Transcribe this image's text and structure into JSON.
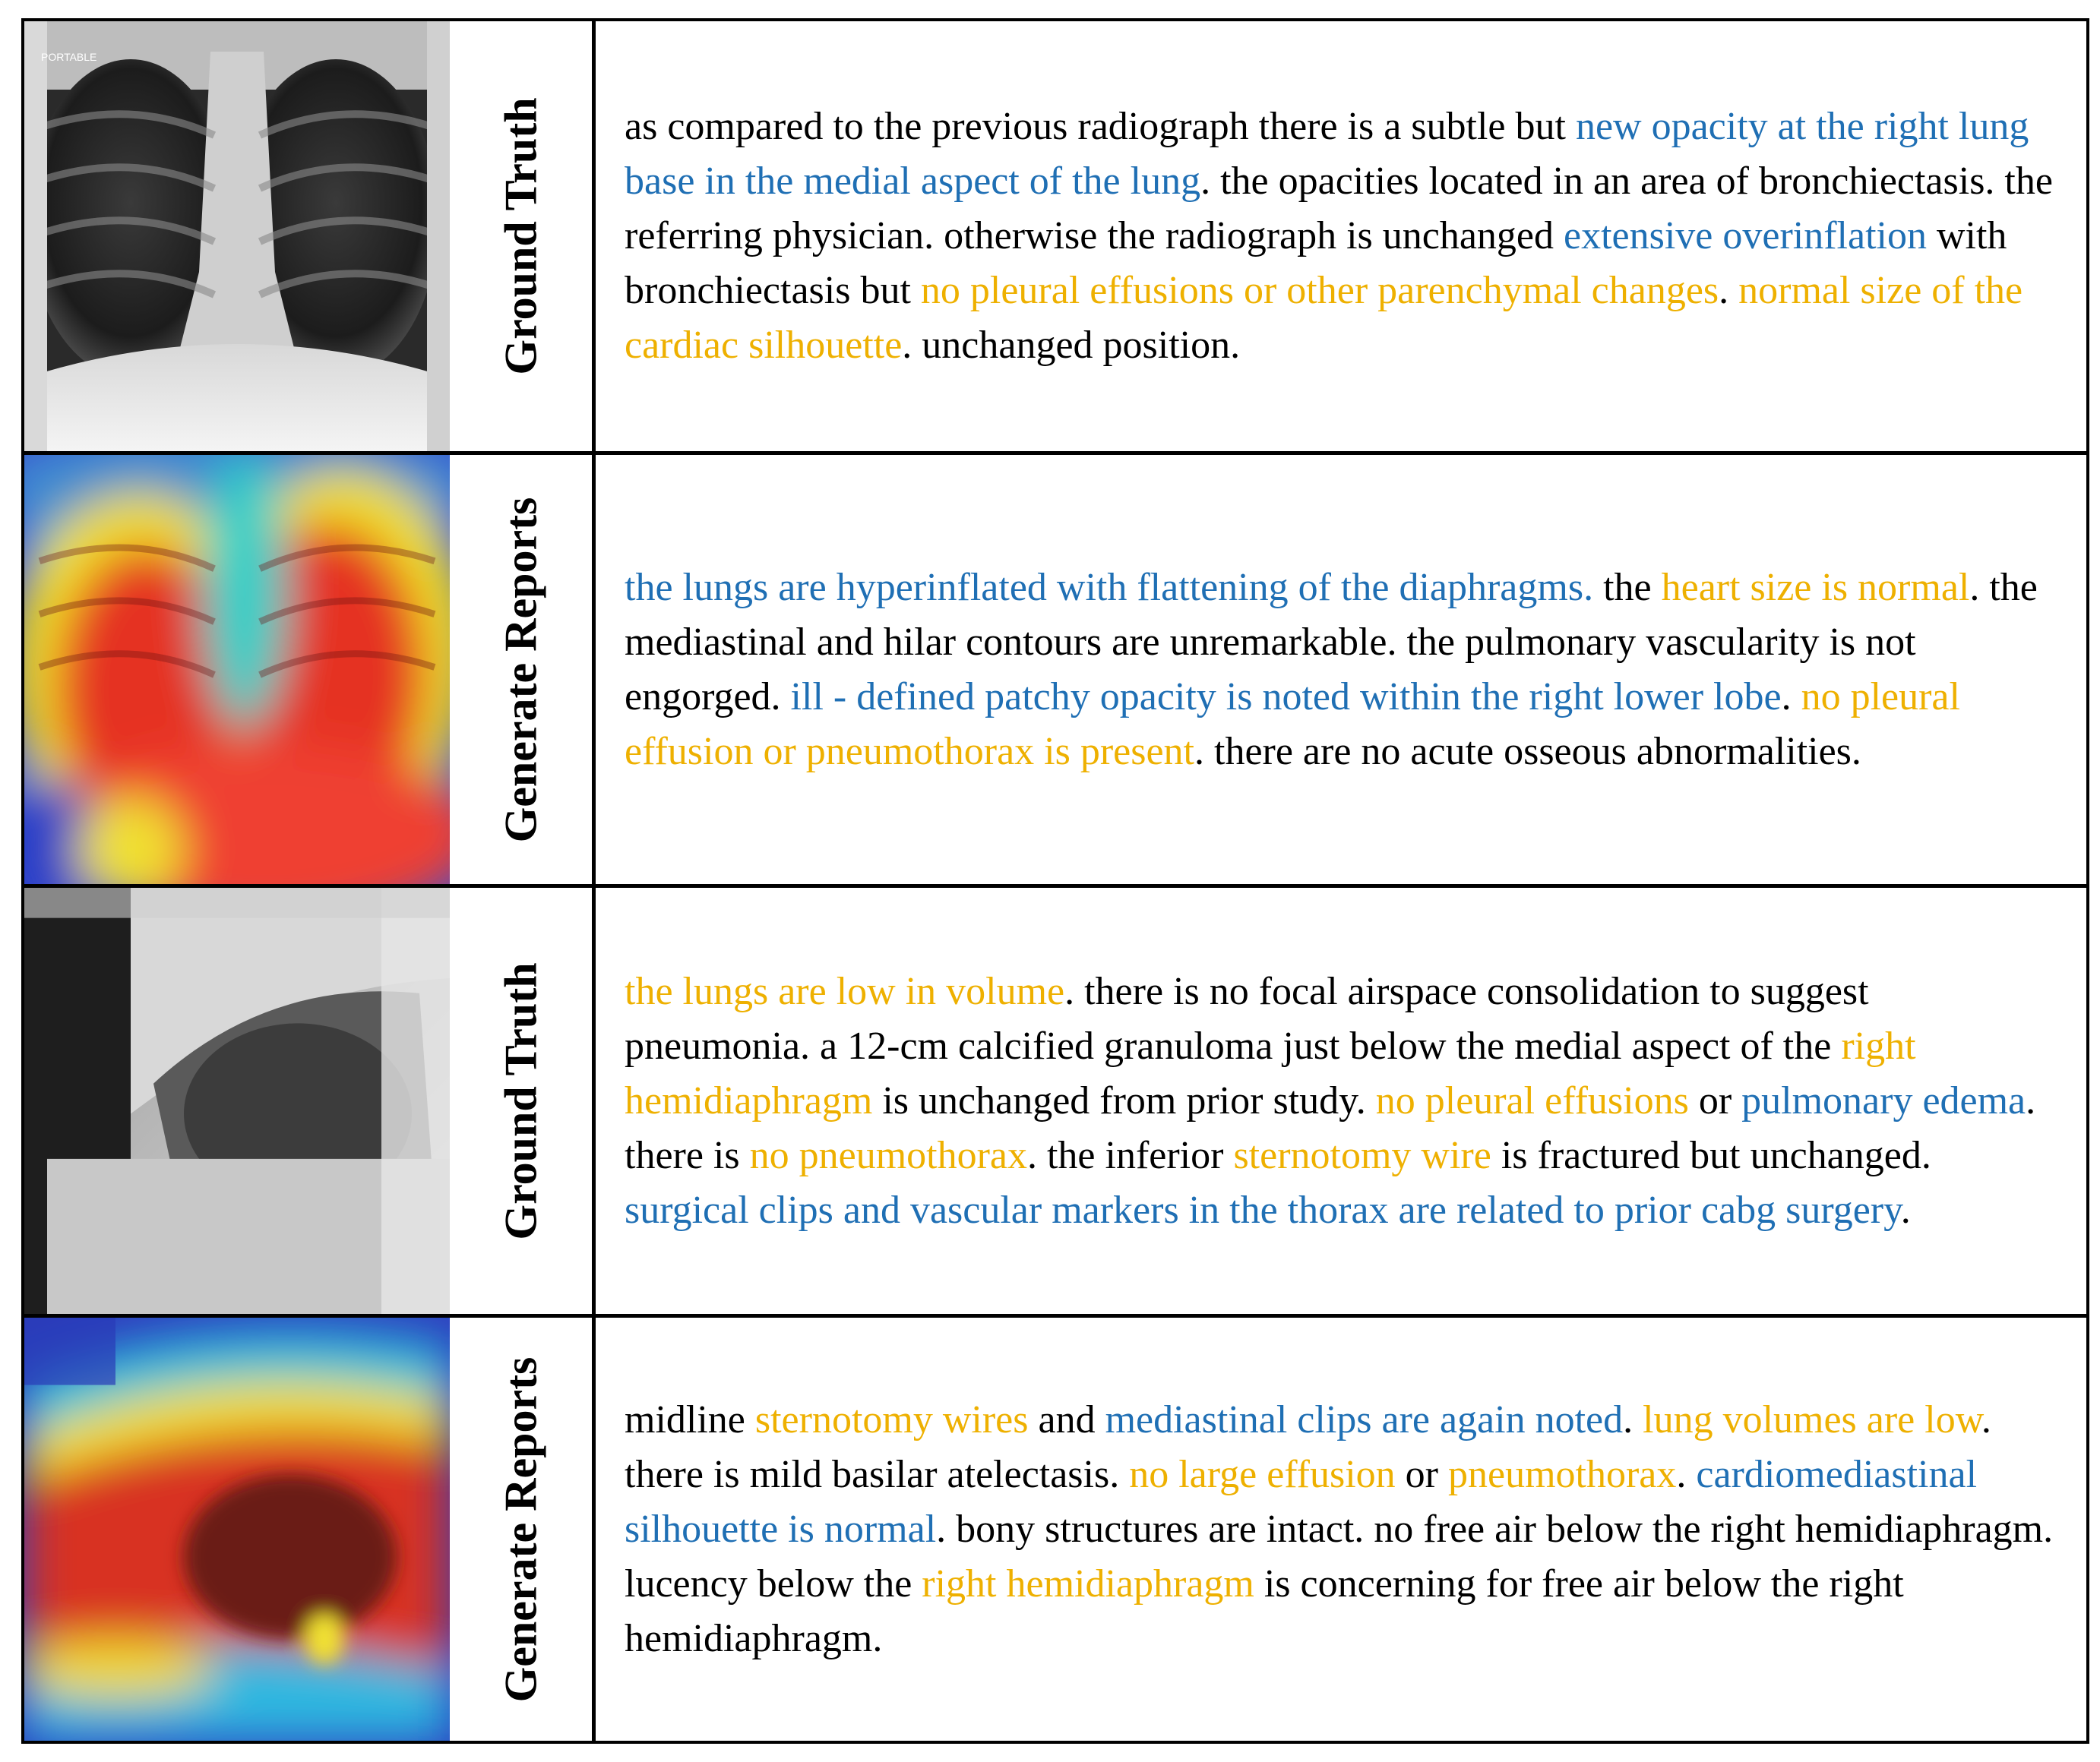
{
  "colors": {
    "blue": "#1f6fb4",
    "yellow": "#eeb000",
    "black": "#000000"
  },
  "rows": [
    {
      "label": "Ground Truth",
      "image": {
        "view": "frontal chest radiograph",
        "overlay": "none",
        "marker_text": "PORTABLE"
      },
      "segments": [
        {
          "text": "as compared to the previous radiograph there is a subtle but ",
          "color": "black"
        },
        {
          "text": "new opacity at the right lung base in the medial aspect of the lung",
          "color": "blue"
        },
        {
          "text": ". the opacities located in an area of bronchiectasis. the referring physician. otherwise the radiograph is unchanged ",
          "color": "black"
        },
        {
          "text": "extensive overinflation",
          "color": "blue"
        },
        {
          "text": " with bronchiectasis but ",
          "color": "black"
        },
        {
          "text": "no pleural effusions or other parenchymal changes",
          "color": "yellow"
        },
        {
          "text": ". ",
          "color": "black"
        },
        {
          "text": "normal size of the cardiac silhouette",
          "color": "yellow"
        },
        {
          "text": ". unchanged position.",
          "color": "black"
        }
      ]
    },
    {
      "label": "Generate Reports",
      "image": {
        "view": "frontal chest radiograph",
        "overlay": "attention heatmap"
      },
      "segments": [
        {
          "text": "the lungs are hyperinflated with flattening of the diaphragms.",
          "color": "blue"
        },
        {
          "text": " the ",
          "color": "black"
        },
        {
          "text": "heart size is normal",
          "color": "yellow"
        },
        {
          "text": ". the mediastinal and hilar contours are unremarkable. the pulmonary vascularity is not engorged. ",
          "color": "black"
        },
        {
          "text": "ill - defined patchy opacity is noted within the right lower lobe",
          "color": "blue"
        },
        {
          "text": ". ",
          "color": "black"
        },
        {
          "text": "no pleural effusion or pneumothorax is present",
          "color": "yellow"
        },
        {
          "text": ". there are no acute osseous abnormalities.",
          "color": "black"
        }
      ]
    },
    {
      "label": "Ground Truth",
      "image": {
        "view": "lateral chest radiograph",
        "overlay": "none"
      },
      "segments": [
        {
          "text": "the lungs are low in volume",
          "color": "yellow"
        },
        {
          "text": ". there is no focal airspace consolidation to suggest pneumonia. a 12-cm calcified granuloma just below the medial aspect of the ",
          "color": "black"
        },
        {
          "text": "right hemidiaphragm",
          "color": "yellow"
        },
        {
          "text": " is unchanged from prior study. ",
          "color": "black"
        },
        {
          "text": "no pleural effusions",
          "color": "yellow"
        },
        {
          "text": " or ",
          "color": "black"
        },
        {
          "text": "pulmonary edema",
          "color": "blue"
        },
        {
          "text": ". there is ",
          "color": "black"
        },
        {
          "text": "no pneumothorax",
          "color": "yellow"
        },
        {
          "text": ". the inferior ",
          "color": "black"
        },
        {
          "text": "sternotomy wire",
          "color": "yellow"
        },
        {
          "text": " is fractured but unchanged. ",
          "color": "black"
        },
        {
          "text": "surgical clips and vascular markers in the thorax are related to prior cabg surgery",
          "color": "blue"
        },
        {
          "text": ".",
          "color": "black"
        }
      ]
    },
    {
      "label": "Generate Reports",
      "image": {
        "view": "lateral chest radiograph",
        "overlay": "attention heatmap"
      },
      "segments": [
        {
          "text": "midline ",
          "color": "black"
        },
        {
          "text": "sternotomy wires",
          "color": "yellow"
        },
        {
          "text": " and ",
          "color": "black"
        },
        {
          "text": "mediastinal clips are again noted",
          "color": "blue"
        },
        {
          "text": ". ",
          "color": "black"
        },
        {
          "text": "lung volumes are low",
          "color": "yellow"
        },
        {
          "text": ". there is mild basilar atelectasis. ",
          "color": "black"
        },
        {
          "text": "no large effusion",
          "color": "yellow"
        },
        {
          "text": " or ",
          "color": "black"
        },
        {
          "text": "pneumothorax",
          "color": "yellow"
        },
        {
          "text": ". ",
          "color": "black"
        },
        {
          "text": "cardiomediastinal silhouette is normal",
          "color": "blue"
        },
        {
          "text": ". bony structures are intact. no free air below the right hemidiaphragm. lucency below the ",
          "color": "black"
        },
        {
          "text": "right hemidiaphragm",
          "color": "yellow"
        },
        {
          "text": " is concerning for free air below the right hemidiaphragm.",
          "color": "black"
        }
      ]
    }
  ]
}
